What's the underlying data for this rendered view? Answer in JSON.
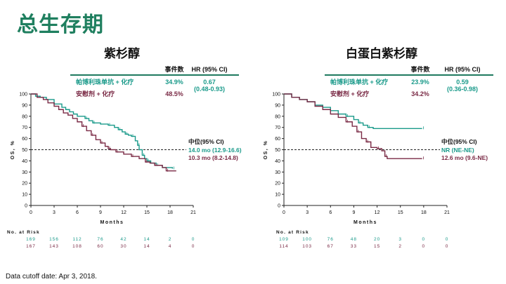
{
  "slide_title": "总生存期",
  "cutoff_note": "Data cutoff date: Apr 3, 2018.",
  "colors": {
    "title": "#1f7f5f",
    "teal": "#1a9a8a",
    "maroon": "#7a2a45",
    "rule": "#1f7a5f"
  },
  "chart_data": [
    {
      "type": "line",
      "subtype": "kaplan-meier",
      "title": "紫杉醇",
      "xlabel": "Months",
      "ylabel": "OS, %",
      "xlim": [
        0,
        21
      ],
      "ylim": [
        0,
        100
      ],
      "xticks": [
        "0",
        "3",
        "6",
        "9",
        "12",
        "15",
        "18",
        "21"
      ],
      "yticks": [
        "0",
        "10",
        "20",
        "30",
        "40",
        "50",
        "60",
        "70",
        "80",
        "90",
        "100"
      ],
      "median_line": 50,
      "table_headers": [
        "事件数",
        "HR (95% CI)"
      ],
      "series": [
        {
          "name": "帕博利珠单抗 + 化疗",
          "events": "34.9%",
          "hr": "0.67",
          "hr_ci": "(0.48-0.93)",
          "median": "14.0 mo (12.9-16.6)",
          "color": "#1a9a8a",
          "points": [
            [
              0,
              100
            ],
            [
              0.6,
              98
            ],
            [
              1.2,
              97
            ],
            [
              2,
              95
            ],
            [
              3,
              91
            ],
            [
              4,
              88
            ],
            [
              4.5,
              86
            ],
            [
              5,
              84
            ],
            [
              5.5,
              82
            ],
            [
              6,
              80
            ],
            [
              7,
              78
            ],
            [
              7.5,
              76
            ],
            [
              8,
              74
            ],
            [
              9,
              73
            ],
            [
              10,
              72
            ],
            [
              10.8,
              70
            ],
            [
              11.3,
              68
            ],
            [
              11.8,
              66
            ],
            [
              12.2,
              64
            ],
            [
              12.6,
              63
            ],
            [
              13,
              62
            ],
            [
              13.5,
              58
            ],
            [
              13.8,
              54
            ],
            [
              14,
              50
            ],
            [
              14.4,
              45
            ],
            [
              14.7,
              42
            ],
            [
              15,
              40
            ],
            [
              15.5,
              38
            ],
            [
              16.2,
              36
            ],
            [
              17,
              34
            ],
            [
              18.3,
              33
            ]
          ]
        },
        {
          "name": "安慰剂 + 化疗",
          "events": "48.5%",
          "median": "10.3 mo (8.2-14.8)",
          "color": "#7a2a45",
          "points": [
            [
              0,
              100
            ],
            [
              0.8,
              97
            ],
            [
              1.6,
              95
            ],
            [
              2.2,
              92
            ],
            [
              3,
              89
            ],
            [
              3.6,
              86
            ],
            [
              4.2,
              83
            ],
            [
              4.8,
              81
            ],
            [
              5.4,
              78
            ],
            [
              6,
              75
            ],
            [
              6.6,
              71
            ],
            [
              7.2,
              67
            ],
            [
              7.8,
              63
            ],
            [
              8.4,
              59
            ],
            [
              9,
              56
            ],
            [
              9.6,
              53
            ],
            [
              10,
              51
            ],
            [
              10.3,
              50
            ],
            [
              11,
              48
            ],
            [
              12,
              46
            ],
            [
              13,
              44
            ],
            [
              14,
              42
            ],
            [
              14.8,
              39
            ],
            [
              15.4,
              38
            ],
            [
              16,
              36
            ],
            [
              17,
              34
            ],
            [
              17.5,
              31
            ],
            [
              18.8,
              31
            ]
          ]
        }
      ],
      "risk_table": {
        "label": "No. at Risk",
        "rows": [
          [
            "169",
            "156",
            "112",
            "76",
            "42",
            "14",
            "2",
            "0"
          ],
          [
            "167",
            "143",
            "108",
            "60",
            "30",
            "14",
            "4",
            "0"
          ]
        ]
      },
      "median_header": "中位(95% CI)"
    },
    {
      "type": "line",
      "subtype": "kaplan-meier",
      "title": "白蛋白紫杉醇",
      "xlabel": "Months",
      "ylabel": "OS, %",
      "xlim": [
        0,
        21
      ],
      "ylim": [
        0,
        100
      ],
      "xticks": [
        "0",
        "3",
        "6",
        "9",
        "12",
        "15",
        "18",
        "21"
      ],
      "yticks": [
        "0",
        "10",
        "20",
        "30",
        "40",
        "50",
        "60",
        "70",
        "80",
        "90",
        "100"
      ],
      "median_line": 50,
      "table_headers": [
        "事件数",
        "HR (95% CI)"
      ],
      "series": [
        {
          "name": "帕博利珠单抗 + 化疗",
          "events": "23.9%",
          "hr": "0.59",
          "hr_ci": "(0.36-0.98)",
          "median": "NR (NE-NE)",
          "color": "#1a9a8a",
          "points": [
            [
              0,
              100
            ],
            [
              1,
              97
            ],
            [
              2,
              95
            ],
            [
              3,
              93
            ],
            [
              4,
              90
            ],
            [
              5,
              88
            ],
            [
              6,
              85
            ],
            [
              7,
              82
            ],
            [
              8,
              80
            ],
            [
              9,
              77
            ],
            [
              9.6,
              74
            ],
            [
              10.2,
              72
            ],
            [
              10.8,
              70
            ],
            [
              11.5,
              69
            ],
            [
              17.8,
              69
            ]
          ]
        },
        {
          "name": "安慰剂 + 化疗",
          "events": "34.2%",
          "median": "12.6 mo (9.6-NE)",
          "color": "#7a2a45",
          "points": [
            [
              0,
              100
            ],
            [
              1,
              97
            ],
            [
              2,
              95
            ],
            [
              3,
              93
            ],
            [
              4,
              89
            ],
            [
              5,
              86
            ],
            [
              6,
              82
            ],
            [
              7,
              79
            ],
            [
              8,
              75
            ],
            [
              8.8,
              71
            ],
            [
              9.4,
              66
            ],
            [
              10,
              60
            ],
            [
              10.6,
              57
            ],
            [
              11.2,
              52
            ],
            [
              12,
              51
            ],
            [
              12.6,
              49
            ],
            [
              13,
              44
            ],
            [
              13.3,
              42
            ],
            [
              17.8,
              42
            ]
          ]
        }
      ],
      "risk_table": {
        "label": "No. at Risk",
        "rows": [
          [
            "109",
            "100",
            "76",
            "48",
            "20",
            "3",
            "0",
            "0"
          ],
          [
            "114",
            "103",
            "67",
            "33",
            "15",
            "2",
            "0",
            "0"
          ]
        ]
      },
      "median_header": "中位(95% CI)"
    }
  ]
}
